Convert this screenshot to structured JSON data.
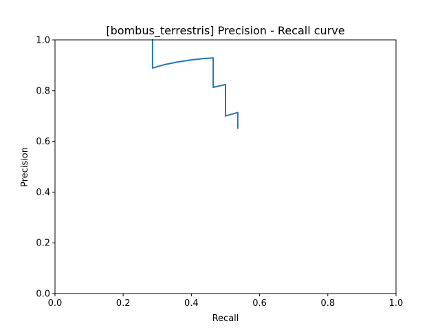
{
  "chart_data": {
    "type": "line",
    "title": "[bombus_terrestris] Precision - Recall curve",
    "xlabel": "Recall",
    "ylabel": "Precision",
    "xlim": [
      0.0,
      1.0
    ],
    "ylim": [
      0.0,
      1.0
    ],
    "xticks": [
      "0.0",
      "0.2",
      "0.4",
      "0.6",
      "0.8",
      "1.0"
    ],
    "yticks": [
      "0.0",
      "0.2",
      "0.4",
      "0.6",
      "0.8",
      "1.0"
    ],
    "grid": false,
    "series": [
      {
        "color": "#1f77b4",
        "x": [
          0.286,
          0.286,
          0.32,
          0.36,
          0.4,
          0.44,
          0.464,
          0.464,
          0.5,
          0.5,
          0.536,
          0.536
        ],
        "y": [
          1.0,
          0.889,
          0.902,
          0.913,
          0.921,
          0.927,
          0.929,
          0.813,
          0.824,
          0.7,
          0.714,
          0.652
        ]
      }
    ]
  }
}
